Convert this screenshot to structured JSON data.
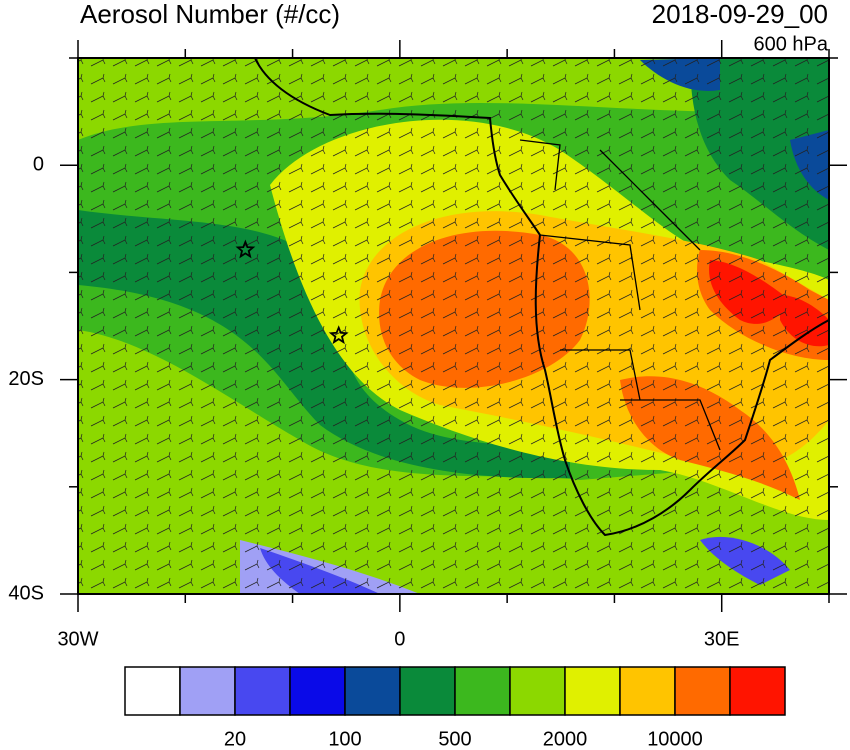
{
  "title": "Aerosol Number (#/cc)",
  "date": "2018-09-29_00",
  "level": "600 hPa",
  "map": {
    "xlim": [
      -30,
      40
    ],
    "ylim": [
      -40,
      10
    ],
    "xticks": [
      {
        "value": -30,
        "label": "30W"
      },
      0,
      {
        "value": 30,
        "label": "30E"
      }
    ],
    "yticks": [
      0,
      {
        "value": -20,
        "label": "20S"
      },
      {
        "value": -40,
        "label": "40S"
      }
    ],
    "xminorticks": [
      -20,
      -10,
      10,
      20,
      40
    ],
    "yminorticks": [
      10,
      -10,
      -30
    ],
    "markers": [
      {
        "lon": -14.4,
        "lat": -7.9
      },
      {
        "lon": -5.7,
        "lat": -15.9
      }
    ]
  },
  "colorbar": {
    "colors": [
      "#ffffff",
      "#a0a0f5",
      "#4848f0",
      "#0a0ae8",
      "#0a4a9a",
      "#0a8a3a",
      "#3cb81e",
      "#8cd800",
      "#e0f000",
      "#ffc400",
      "#ff6a00",
      "#ff1400"
    ],
    "labels": [
      20,
      100,
      500,
      2000,
      10000
    ]
  }
}
